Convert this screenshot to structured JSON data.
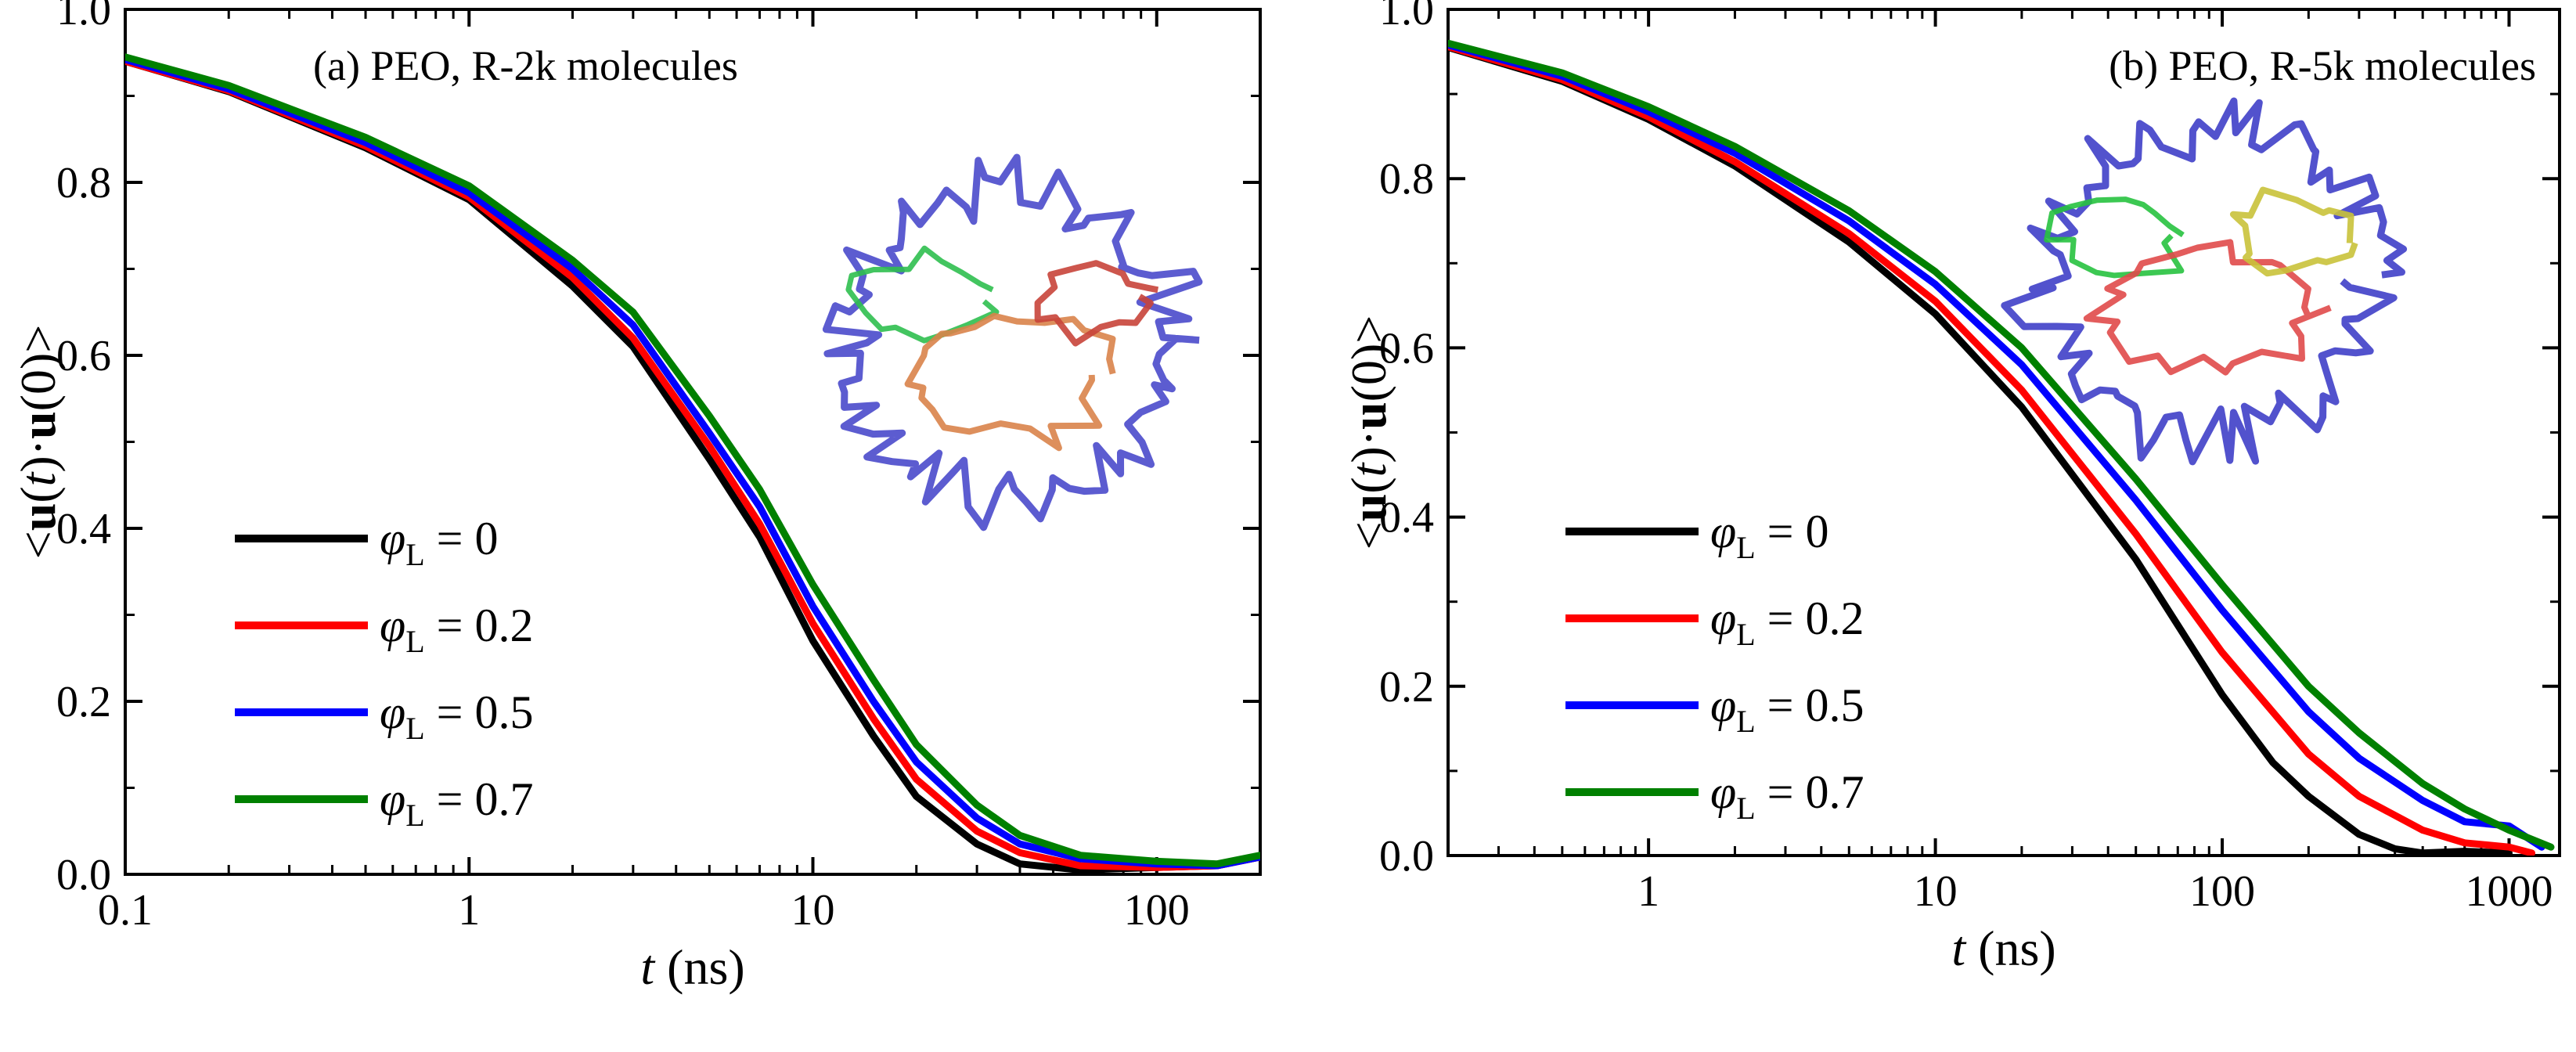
{
  "chart_data": [
    {
      "type": "line",
      "title": "(a) PEO, R-2k molecules",
      "xlabel_var": "t",
      "xlabel_unit": " (ns)",
      "ylabel_parts": [
        "<",
        "u",
        "(",
        "t",
        ")·",
        "u",
        "(0)>"
      ],
      "x_scale": "log",
      "xlim": [
        0.1,
        200
      ],
      "ylim": [
        0,
        1.0
      ],
      "x_ticks": [
        {
          "value": 0.1,
          "label": "0.1"
        },
        {
          "value": 1,
          "label": "1"
        },
        {
          "value": 10,
          "label": "10"
        },
        {
          "value": 100,
          "label": "100"
        }
      ],
      "y_ticks": [
        {
          "value": 0,
          "label": "0.0"
        },
        {
          "value": 0.2,
          "label": "0.2"
        },
        {
          "value": 0.4,
          "label": "0.4"
        },
        {
          "value": 0.6,
          "label": "0.6"
        },
        {
          "value": 0.8,
          "label": "0.8"
        },
        {
          "value": 1.0,
          "label": "1.0"
        }
      ],
      "legend_position": "lower-left",
      "series": [
        {
          "name": "φL = 0",
          "symbol": "φ",
          "subscript": "L",
          "value_text": " = 0",
          "color": "#000000",
          "x": [
            0.1,
            0.2,
            0.5,
            1,
            2,
            3,
            5,
            7,
            10,
            15,
            20,
            30,
            40,
            60,
            100,
            150,
            200
          ],
          "y": [
            0.94,
            0.905,
            0.84,
            0.78,
            0.68,
            0.61,
            0.48,
            0.39,
            0.27,
            0.16,
            0.09,
            0.035,
            0.012,
            0.005,
            0.008,
            0.01,
            0.02
          ]
        },
        {
          "name": "φL = 0.2",
          "symbol": "φ",
          "subscript": "L",
          "value_text": " = 0.2",
          "color": "#ff0000",
          "x": [
            0.1,
            0.2,
            0.5,
            1,
            2,
            3,
            5,
            7,
            10,
            15,
            20,
            30,
            40,
            60,
            100,
            150,
            200
          ],
          "y": [
            0.94,
            0.906,
            0.842,
            0.783,
            0.69,
            0.62,
            0.495,
            0.405,
            0.29,
            0.18,
            0.11,
            0.05,
            0.025,
            0.01,
            0.008,
            0.01,
            0.02
          ]
        },
        {
          "name": "φL = 0.5",
          "symbol": "φ",
          "subscript": "L",
          "value_text": " = 0.5",
          "color": "#0000ff",
          "x": [
            0.1,
            0.2,
            0.5,
            1,
            2,
            3,
            5,
            7,
            10,
            15,
            20,
            30,
            40,
            60,
            100,
            150,
            200
          ],
          "y": [
            0.942,
            0.908,
            0.846,
            0.788,
            0.7,
            0.635,
            0.51,
            0.425,
            0.31,
            0.2,
            0.13,
            0.065,
            0.035,
            0.018,
            0.012,
            0.01,
            0.02
          ]
        },
        {
          "name": "φL = 0.7",
          "symbol": "φ",
          "subscript": "L",
          "value_text": " = 0.7",
          "color": "#008000",
          "x": [
            0.1,
            0.2,
            0.5,
            1,
            2,
            3,
            5,
            7,
            10,
            15,
            20,
            30,
            40,
            60,
            100,
            150,
            200
          ],
          "y": [
            0.945,
            0.912,
            0.852,
            0.796,
            0.71,
            0.65,
            0.53,
            0.445,
            0.335,
            0.225,
            0.15,
            0.08,
            0.045,
            0.022,
            0.015,
            0.012,
            0.022
          ]
        }
      ]
    },
    {
      "type": "line",
      "title": "(b) PEO, R-5k molecules",
      "xlabel_var": "t",
      "xlabel_unit": " (ns)",
      "ylabel_parts": [
        "<",
        "u",
        "(",
        "t",
        ")·",
        "u",
        "(0)>"
      ],
      "x_scale": "log",
      "xlim": [
        0.2,
        1500
      ],
      "ylim": [
        0,
        1.0
      ],
      "x_ticks": [
        {
          "value": 1,
          "label": "1"
        },
        {
          "value": 10,
          "label": "10"
        },
        {
          "value": 100,
          "label": "100"
        },
        {
          "value": 1000,
          "label": "1000"
        }
      ],
      "y_ticks": [
        {
          "value": 0,
          "label": "0.0"
        },
        {
          "value": 0.2,
          "label": "0.2"
        },
        {
          "value": 0.4,
          "label": "0.4"
        },
        {
          "value": 0.6,
          "label": "0.6"
        },
        {
          "value": 0.8,
          "label": "0.8"
        },
        {
          "value": 1.0,
          "label": "1.0"
        }
      ],
      "legend_position": "lower-left",
      "series": [
        {
          "name": "φL = 0",
          "symbol": "φ",
          "subscript": "L",
          "value_text": " = 0",
          "color": "#000000",
          "x": [
            0.2,
            0.5,
            1,
            2,
            5,
            10,
            20,
            50,
            100,
            150,
            200,
            300,
            400,
            500,
            700,
            1000
          ],
          "y": [
            0.955,
            0.915,
            0.87,
            0.815,
            0.725,
            0.64,
            0.53,
            0.35,
            0.19,
            0.11,
            0.07,
            0.025,
            0.008,
            0.003,
            0.005,
            0.003
          ]
        },
        {
          "name": "φL = 0.2",
          "symbol": "φ",
          "subscript": "L",
          "value_text": " = 0.2",
          "color": "#ff0000",
          "x": [
            0.2,
            0.5,
            1,
            2,
            5,
            10,
            20,
            50,
            100,
            200,
            300,
            500,
            700,
            1000,
            1200
          ],
          "y": [
            0.956,
            0.917,
            0.873,
            0.82,
            0.735,
            0.655,
            0.55,
            0.38,
            0.24,
            0.12,
            0.07,
            0.03,
            0.015,
            0.01,
            0.003
          ]
        },
        {
          "name": "φL = 0.5",
          "symbol": "φ",
          "subscript": "L",
          "value_text": " = 0.5",
          "color": "#0000ff",
          "x": [
            0.2,
            0.5,
            1,
            2,
            5,
            10,
            20,
            50,
            100,
            200,
            300,
            500,
            700,
            1000,
            1300
          ],
          "y": [
            0.958,
            0.921,
            0.879,
            0.83,
            0.75,
            0.675,
            0.58,
            0.42,
            0.29,
            0.17,
            0.115,
            0.065,
            0.04,
            0.035,
            0.01
          ]
        },
        {
          "name": "φL = 0.7",
          "symbol": "φ",
          "subscript": "L",
          "value_text": " = 0.7",
          "color": "#008000",
          "x": [
            0.2,
            0.5,
            1,
            2,
            5,
            10,
            20,
            50,
            100,
            200,
            300,
            500,
            700,
            1000,
            1400
          ],
          "y": [
            0.96,
            0.925,
            0.885,
            0.838,
            0.762,
            0.69,
            0.6,
            0.445,
            0.32,
            0.2,
            0.145,
            0.085,
            0.055,
            0.03,
            0.01
          ]
        }
      ]
    }
  ],
  "insets": [
    {
      "description_colors": [
        "#4a4acb",
        "#2fbf4f",
        "#d9834a",
        "#c8443a"
      ]
    },
    {
      "description_colors": [
        "#3f3fc8",
        "#27c23f",
        "#e04a4a",
        "#c9c23a"
      ]
    }
  ]
}
